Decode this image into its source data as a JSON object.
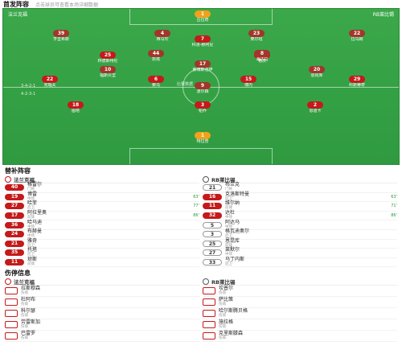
{
  "header": {
    "title": "首发阵容",
    "hint": "点击球员可查看本场详细数据"
  },
  "pitch": {
    "home_tag": "法兰克福",
    "home_formation": "3-4-2-1",
    "away_tag": "RB莱比锡",
    "away_formation": "4-2-3-1",
    "center_label": "比赛数据",
    "home_players": [
      {
        "num": "1",
        "name": "特拉普",
        "cls": "gk"
      },
      {
        "num": "18",
        "name": "图塔"
      },
      {
        "num": "3",
        "name": "帕乔"
      },
      {
        "num": "2",
        "name": "恩迪卡"
      },
      {
        "num": "22",
        "name": "克瑙夫"
      },
      {
        "num": "6",
        "name": "索乌"
      },
      {
        "num": "15",
        "name": "博内"
      },
      {
        "num": "29",
        "name": "科斯蒂奇"
      },
      {
        "num": "25",
        "name": "林德斯特伦"
      },
      {
        "num": "8",
        "name": "格茨"
      },
      {
        "num": "7",
        "name": "科洛-穆阿尼"
      }
    ],
    "away_players": [
      {
        "num": "1",
        "name": "古拉奇",
        "cls": "gk"
      },
      {
        "num": "39",
        "name": "亨里希斯"
      },
      {
        "num": "4",
        "name": "西马坎"
      },
      {
        "num": "23",
        "name": "奥尔班"
      },
      {
        "num": "22",
        "name": "拉乌姆"
      },
      {
        "num": "44",
        "name": "凯塔"
      },
      {
        "num": "8",
        "name": "海达拉"
      },
      {
        "num": "17",
        "name": "索博斯洛伊"
      },
      {
        "num": "10",
        "name": "福斯贝里"
      },
      {
        "num": "20",
        "name": "恩昆库"
      },
      {
        "num": "9",
        "name": "波尔森"
      }
    ]
  },
  "subs": {
    "title": "替补阵容",
    "home_name": "法兰克福",
    "away_name": "RB莱比锡",
    "home": [
      {
        "num": "40",
        "name": "格雷尔",
        "pos": "门将",
        "time": "",
        "white": false
      },
      {
        "num": "19",
        "name": "博雷",
        "pos": "中场",
        "time": "63'",
        "white": false
      },
      {
        "num": "27",
        "name": "哈菲",
        "pos": "后卫",
        "time": "77'",
        "white": false
      },
      {
        "num": "17",
        "name": "阿拉里奥",
        "pos": "前锋",
        "time": "86'",
        "white": false
      },
      {
        "num": "36",
        "name": "哈马迪",
        "pos": "中场",
        "time": "",
        "white": false
      },
      {
        "num": "24",
        "name": "布赫曼",
        "pos": "中场",
        "time": "",
        "white": false
      },
      {
        "num": "21",
        "name": "雅奇",
        "pos": "后卫",
        "time": "",
        "white": false
      },
      {
        "num": "35",
        "name": "托塔",
        "pos": "后卫",
        "time": "",
        "white": false
      },
      {
        "num": "11",
        "name": "琼斯",
        "pos": "前锋",
        "time": "",
        "white": false
      }
    ],
    "away": [
      {
        "num": "21",
        "name": "布兰克",
        "pos": "门将",
        "time": "",
        "white": true
      },
      {
        "num": "16",
        "name": "克洛斯特曼",
        "pos": "后卫",
        "time": "63'",
        "white": false
      },
      {
        "num": "11",
        "name": "维尔纳",
        "pos": "前锋",
        "time": "71'",
        "white": false
      },
      {
        "num": "32",
        "name": "达杜",
        "pos": "中场",
        "time": "86'",
        "white": false
      },
      {
        "num": "5",
        "name": "阿达马",
        "pos": "中场",
        "time": "",
        "white": true
      },
      {
        "num": "3",
        "name": "格瓦迪奥尔",
        "pos": "后卫",
        "time": "",
        "white": true
      },
      {
        "num": "25",
        "name": "恩昆库",
        "pos": "前锋",
        "time": "",
        "white": true
      },
      {
        "num": "27",
        "name": "莱默尔",
        "pos": "中场",
        "time": "",
        "white": true
      },
      {
        "num": "33",
        "name": "马丁内斯",
        "pos": "后卫",
        "time": "",
        "white": true
      }
    ]
  },
  "injuries": {
    "title": "伤停信息",
    "home": [
      {
        "name": "拉斯穆森",
        "reason": "伤病"
      },
      {
        "name": "杜阿布",
        "reason": "伤病"
      },
      {
        "name": "科尔瑟",
        "reason": "伤病"
      },
      {
        "name": "劳雷斯加",
        "reason": "伤病"
      },
      {
        "name": "巴雷罗",
        "reason": "伤病"
      }
    ],
    "away": [
      {
        "name": "坎普尔",
        "reason": "伤病"
      },
      {
        "name": "萨比策",
        "reason": "伤病"
      },
      {
        "name": "哈尔斯腾贝格",
        "reason": "伤病"
      },
      {
        "name": "施拉格",
        "reason": "伤病"
      },
      {
        "name": "克里斯滕森",
        "reason": "伤病"
      }
    ]
  }
}
